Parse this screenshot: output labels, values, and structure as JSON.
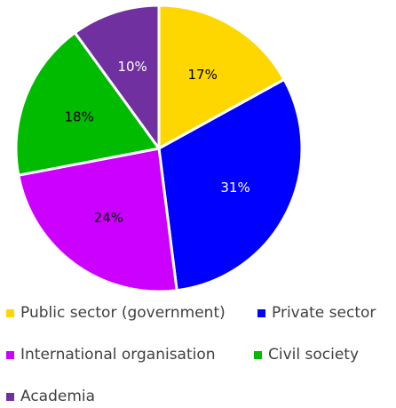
{
  "chart_data": {
    "type": "pie",
    "slices": [
      {
        "name": "Public sector (government)",
        "value": 17,
        "label": "17%",
        "color": "#FFD700",
        "label_color": "#000000"
      },
      {
        "name": "Private sector",
        "value": 31,
        "label": "31%",
        "color": "#0000FF",
        "label_color": "#FFFFFF"
      },
      {
        "name": "International organisation",
        "value": 24,
        "label": "24%",
        "color": "#CC00FF",
        "label_color": "#000000"
      },
      {
        "name": "Civil society",
        "value": 18,
        "label": "18%",
        "color": "#00BB00",
        "label_color": "#000000"
      },
      {
        "name": "Academia",
        "value": 10,
        "label": "10%",
        "color": "#7030A0",
        "label_color": "#FFFFFF"
      }
    ],
    "start": "12 o'clock",
    "direction": "clockwise",
    "legend_position": "bottom"
  }
}
